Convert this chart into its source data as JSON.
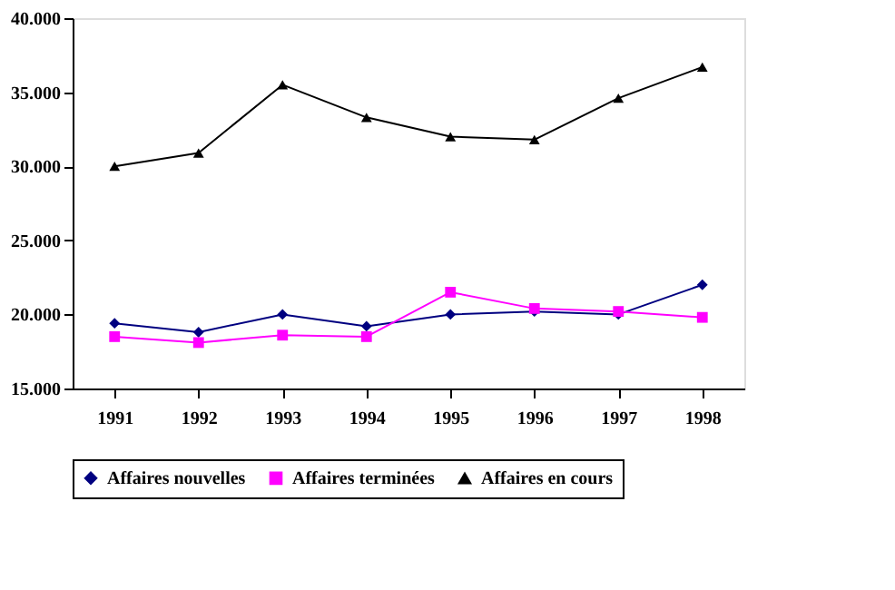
{
  "chart_data": {
    "type": "line",
    "categories": [
      "1991",
      "1992",
      "1993",
      "1994",
      "1995",
      "1996",
      "1997",
      "1998"
    ],
    "series": [
      {
        "name": "Affaires nouvelles",
        "color": "#000080",
        "marker": "diamond",
        "values": [
          19400,
          18800,
          20000,
          19200,
          20000,
          20200,
          20000,
          22000
        ]
      },
      {
        "name": "Affaires terminées",
        "color": "#ff00ff",
        "marker": "square",
        "values": [
          18500,
          18100,
          18600,
          18500,
          21500,
          20400,
          20200,
          19800
        ]
      },
      {
        "name": "Affaires en cours",
        "color": "#000000",
        "marker": "triangle",
        "values": [
          30000,
          30900,
          35500,
          33300,
          32000,
          31800,
          34600,
          36700
        ]
      }
    ],
    "ylim": [
      15000,
      40000
    ],
    "yticks": [
      {
        "value": 15000,
        "label": "15.000"
      },
      {
        "value": 20000,
        "label": "20.000"
      },
      {
        "value": 25000,
        "label": "25.000"
      },
      {
        "value": 30000,
        "label": "30.000"
      },
      {
        "value": 35000,
        "label": "35.000"
      },
      {
        "value": 40000,
        "label": "40.000"
      }
    ],
    "grid": false,
    "legend": "bottom",
    "line_style": "solid"
  }
}
